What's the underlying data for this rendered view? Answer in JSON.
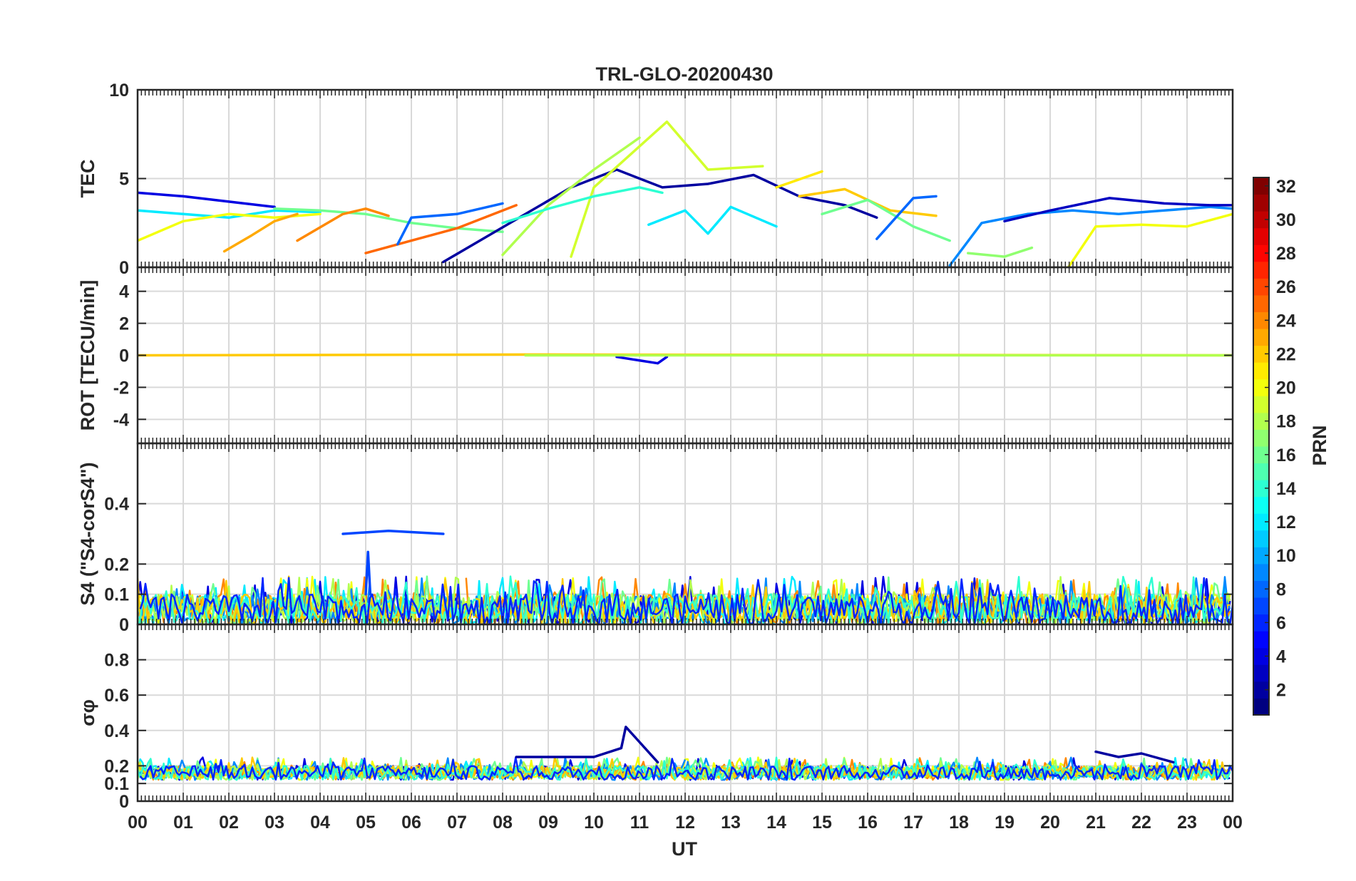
{
  "chart_data": {
    "type": "line",
    "title": "TRL-GLO-20200430",
    "xlabel": "UT",
    "x_ticks": [
      "00",
      "01",
      "02",
      "03",
      "04",
      "05",
      "06",
      "07",
      "08",
      "09",
      "10",
      "11",
      "12",
      "13",
      "14",
      "15",
      "16",
      "17",
      "18",
      "19",
      "20",
      "21",
      "22",
      "23",
      "00"
    ],
    "xlim": [
      0,
      24
    ],
    "grid": true,
    "colorbar": {
      "label": "PRN",
      "range": [
        1,
        32
      ],
      "ticks": [
        "2",
        "4",
        "6",
        "8",
        "10",
        "12",
        "14",
        "16",
        "18",
        "20",
        "22",
        "24",
        "26",
        "28",
        "30",
        "32"
      ],
      "colormap": "jet"
    },
    "panels": [
      {
        "name": "tec",
        "ylabel": "TEC",
        "ylim": [
          0,
          10
        ],
        "y_ticks": [
          "0",
          "5",
          "10"
        ],
        "series": [
          {
            "prn": 4,
            "x": [
              0,
              1,
              2,
              3
            ],
            "y": [
              4.2,
              4.0,
              3.7,
              3.4
            ]
          },
          {
            "prn": 12,
            "x": [
              0,
              1,
              2,
              3,
              4
            ],
            "y": [
              3.2,
              3.0,
              2.8,
              3.2,
              3.1
            ]
          },
          {
            "prn": 20,
            "x": [
              0,
              1,
              2,
              3,
              4
            ],
            "y": [
              1.5,
              2.6,
              3.0,
              2.8,
              3.0
            ]
          },
          {
            "prn": 23,
            "x": [
              1.9,
              2.5,
              3.0,
              3.5
            ],
            "y": [
              0.9,
              1.8,
              2.6,
              3.0
            ]
          },
          {
            "prn": 16,
            "x": [
              3,
              4,
              5,
              6,
              7,
              8
            ],
            "y": [
              3.3,
              3.2,
              3.0,
              2.5,
              2.2,
              2.0
            ]
          },
          {
            "prn": 24,
            "x": [
              3.5,
              4.5,
              5.0,
              5.5
            ],
            "y": [
              1.5,
              3.0,
              3.3,
              2.9
            ]
          },
          {
            "prn": 25,
            "x": [
              5,
              6,
              7,
              8.3
            ],
            "y": [
              0.8,
              1.5,
              2.2,
              3.5
            ]
          },
          {
            "prn": 8,
            "x": [
              5.7,
              6,
              7,
              8
            ],
            "y": [
              1.3,
              2.8,
              3.0,
              3.6
            ]
          },
          {
            "prn": 2,
            "x": [
              6.7,
              7.5,
              8.5,
              9.5,
              10.5,
              11.5,
              12.5,
              13.5,
              14.5,
              15.5,
              16.2
            ],
            "y": [
              0.3,
              1.5,
              3.0,
              4.5,
              5.5,
              4.5,
              4.7,
              5.2,
              4.0,
              3.5,
              2.8
            ]
          },
          {
            "prn": 18,
            "x": [
              8,
              9,
              10,
              11
            ],
            "y": [
              0.7,
              3.5,
              5.5,
              7.3
            ]
          },
          {
            "prn": 19,
            "x": [
              9.5,
              10,
              11.6,
              12.5,
              13.7
            ],
            "y": [
              0.6,
              4.5,
              8.2,
              5.5,
              5.7
            ]
          },
          {
            "prn": 14,
            "x": [
              8,
              9,
              10,
              11,
              11.5
            ],
            "y": [
              2.5,
              3.3,
              4.0,
              4.5,
              4.2
            ]
          },
          {
            "prn": 12,
            "x": [
              11.2,
              12,
              12.5,
              13,
              14
            ],
            "y": [
              2.4,
              3.2,
              1.9,
              3.4,
              2.3
            ]
          },
          {
            "prn": 21,
            "x": [
              14,
              15
            ],
            "y": [
              4.5,
              5.4
            ]
          },
          {
            "prn": 22,
            "x": [
              14.5,
              15.5,
              16.5,
              17.5
            ],
            "y": [
              4.0,
              4.4,
              3.2,
              2.9
            ]
          },
          {
            "prn": 16,
            "x": [
              15,
              16,
              17,
              17.8
            ],
            "y": [
              3.0,
              3.8,
              2.3,
              1.5
            ]
          },
          {
            "prn": 8,
            "x": [
              16.2,
              17,
              17.5
            ],
            "y": [
              1.6,
              3.9,
              4.0
            ]
          },
          {
            "prn": 9,
            "x": [
              17.8,
              18.5,
              19.5,
              20.5,
              21.5,
              22.5,
              23.5,
              24
            ],
            "y": [
              0.1,
              2.5,
              3.0,
              3.2,
              3.0,
              3.2,
              3.4,
              3.3
            ]
          },
          {
            "prn": 17,
            "x": [
              18.2,
              19,
              19.6
            ],
            "y": [
              0.8,
              0.6,
              1.1
            ]
          },
          {
            "prn": 20,
            "x": [
              20.4,
              21,
              22,
              23,
              24
            ],
            "y": [
              0,
              2.3,
              2.4,
              2.3,
              3.0
            ]
          },
          {
            "prn": 3,
            "x": [
              19,
              20,
              21.3,
              22.5,
              23.5,
              24
            ],
            "y": [
              2.6,
              3.2,
              3.9,
              3.6,
              3.5,
              3.5
            ]
          }
        ]
      },
      {
        "name": "rot",
        "ylabel": "ROT [TECU/min]",
        "ylim": [
          -5.5,
          5.5
        ],
        "y_ticks": [
          "-4",
          "-2",
          "0",
          "2",
          "4"
        ],
        "series": [
          {
            "prn": 22,
            "x": [
              0,
              8.5,
              24
            ],
            "y": [
              0,
              0.05,
              0
            ]
          },
          {
            "prn": 4,
            "x": [
              10.5,
              11.4,
              11.6
            ],
            "y": [
              -0.1,
              -0.5,
              -0.1
            ]
          },
          {
            "prn": 18,
            "x": [
              8.5,
              24
            ],
            "y": [
              0,
              0
            ]
          }
        ]
      },
      {
        "name": "s4",
        "ylabel": "S4 (\"S4-corS4\")",
        "ylim": [
          0,
          0.6
        ],
        "y_ticks": [
          "0",
          "0.1",
          "0.2",
          "0.4"
        ],
        "series": [
          {
            "prn": 7,
            "x": [
              4.5,
              5.5,
              6.7
            ],
            "y": [
              0.3,
              0.31,
              0.3
            ]
          },
          {
            "prn": 7,
            "x": [
              5.0,
              5.05,
              5.1
            ],
            "y": [
              0.1,
              0.24,
              0.1
            ]
          }
        ],
        "baseline_band": [
          0.0,
          0.1
        ]
      },
      {
        "name": "sigma_phi",
        "ylabel": "σφ",
        "ylim": [
          0,
          1
        ],
        "y_ticks": [
          "0",
          "0.1",
          "0.2",
          "0.4",
          "0.6",
          "0.8"
        ],
        "series": [
          {
            "prn": 2,
            "x": [
              8.3,
              9,
              10,
              10.6,
              10.7,
              11.4
            ],
            "y": [
              0.25,
              0.25,
              0.25,
              0.3,
              0.42,
              0.22
            ]
          },
          {
            "prn": 2,
            "x": [
              21,
              21.5,
              22,
              22.7
            ],
            "y": [
              0.28,
              0.25,
              0.27,
              0.22
            ]
          }
        ],
        "baseline_band": [
          0.12,
          0.2
        ]
      }
    ]
  }
}
